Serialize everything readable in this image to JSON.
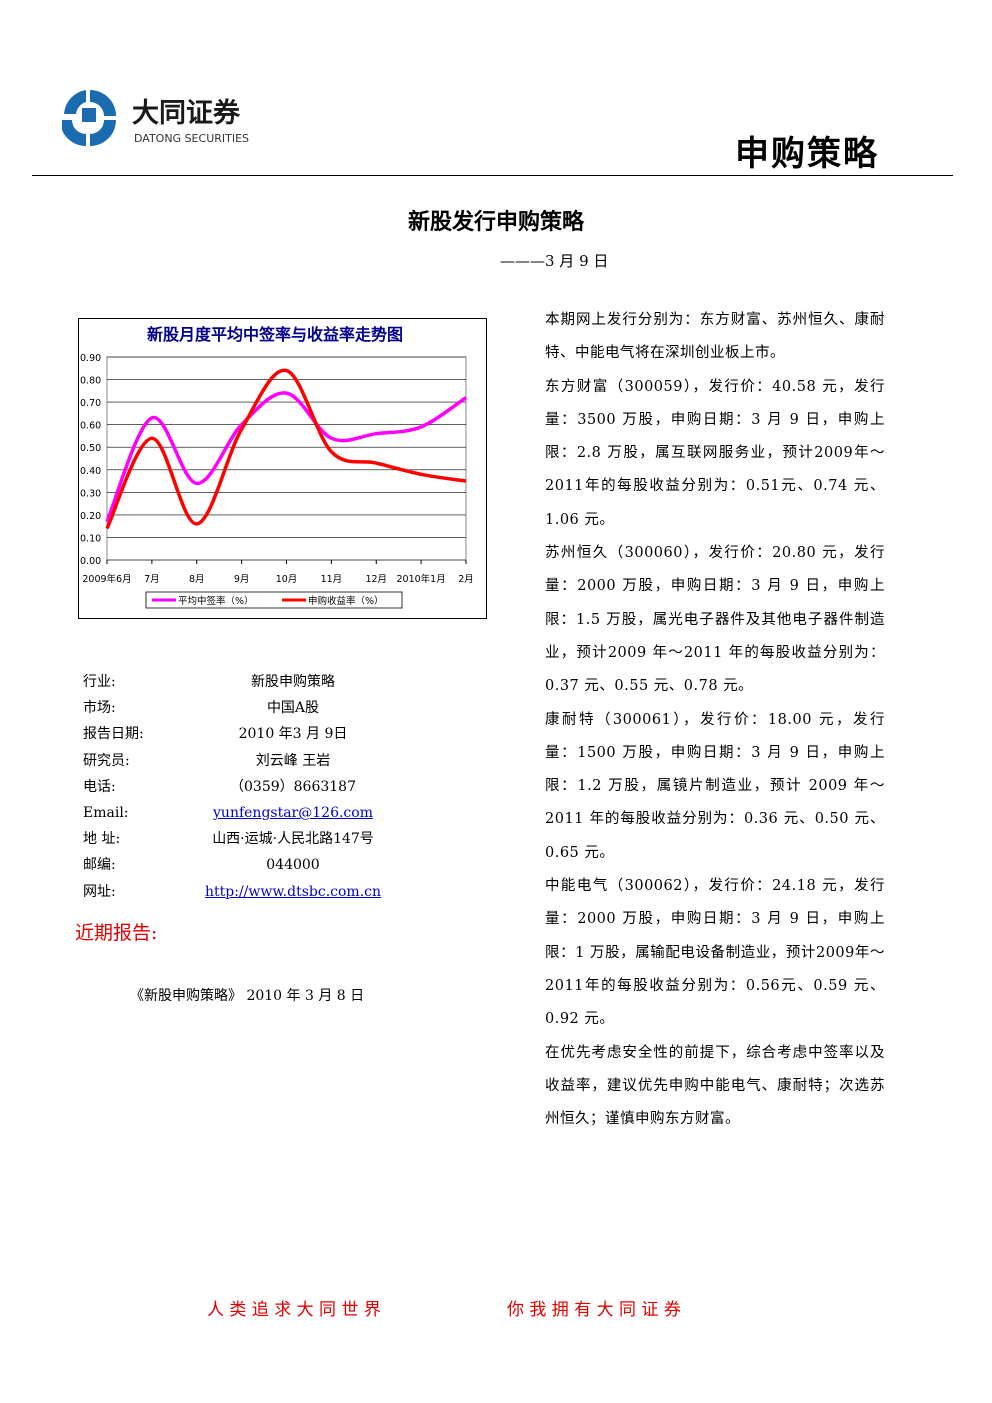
{
  "header": {
    "brand": "大同证券",
    "brand_en": "DATONG SECURITIES",
    "section": "申购策略"
  },
  "title": "新股发行申购策略",
  "date": "———3 月 9 日",
  "chart_data": {
    "type": "line",
    "title": "新股月度平均中签率与收益率走势图",
    "categories": [
      "2009年6月",
      "7月",
      "8月",
      "9月",
      "10月",
      "11月",
      "12月",
      "2010年1月",
      "2月"
    ],
    "series": [
      {
        "name": "平均中签率（%）",
        "color": "#ff00ff",
        "values": [
          0.17,
          0.63,
          0.34,
          0.6,
          0.74,
          0.54,
          0.56,
          0.59,
          0.72
        ]
      },
      {
        "name": "申购收益率（%）",
        "color": "#ff0000",
        "values": [
          0.14,
          0.54,
          0.16,
          0.58,
          0.84,
          0.48,
          0.43,
          0.38,
          0.35
        ]
      }
    ],
    "ylim": [
      0,
      0.9
    ],
    "yticks": [
      {
        "value": 0,
        "label": "0.00"
      },
      {
        "value": 0.1,
        "label": "0.10"
      },
      {
        "value": 0.2,
        "label": "0.20"
      },
      {
        "value": 0.3,
        "label": "0.30"
      },
      {
        "value": 0.4,
        "label": "0.40"
      },
      {
        "value": 0.5,
        "label": "0.50"
      },
      {
        "value": 0.6,
        "label": "0.60"
      },
      {
        "value": 0.7,
        "label": "0.70"
      },
      {
        "value": 0.8,
        "label": "0.80"
      },
      {
        "value": 0.9,
        "label": "0.90"
      }
    ],
    "grid": true,
    "legend": "bottom"
  },
  "info": {
    "rows": [
      [
        "行业:",
        "新股申购策略"
      ],
      [
        "市场:",
        "中国A股"
      ],
      [
        "报告日期:",
        "2010  年3  月  9日"
      ],
      [
        "研究员:",
        "刘云峰      王岩"
      ],
      [
        "电话:",
        "（0359）8663187"
      ],
      [
        "Email:",
        "yunfengstar@126.com"
      ],
      [
        "地  址:",
        "山西·运城·人民北路147号"
      ],
      [
        "邮编:",
        "044000"
      ],
      [
        "网址:",
        "http://www.dtsbc.com.cn"
      ]
    ]
  },
  "recent": {
    "heading": "近期报告:",
    "items": [
      "《新股申购策略》 2010 年 3 月 8 日"
    ]
  },
  "body": {
    "paragraphs": [
      "本期网上发行分别为：东方财富、苏州恒久、康耐特、中能电气将在深圳创业板上市。",
      "东方财富（300059），发行价：40.58 元，发行量：3500 万股，申购日期：3 月 9 日，申购上限：2.8 万股，属互联网服务业，预计2009年～2011年的每股收益分别为：0.51元、0.74 元、1.06 元。",
      "苏州恒久（300060），发行价：20.80 元，发行量：2000 万股，申购日期：3 月 9 日，申购上限：1.5 万股，属光电子器件及其他电子器件制造业，预计2009 年～2011 年的每股收益分别为：0.37 元、0.55 元、0.78 元。",
      "康耐特（300061），发行价：18.00 元，发行量：1500 万股，申购日期：3 月 9 日，申购上限：1.2 万股，属镜片制造业，预计 2009 年～2011 年的每股收益分别为：0.36 元、0.50 元、0.65 元。",
      "中能电气（300062），发行价：24.18 元，发行量：2000 万股，申购日期：3 月 9 日，申购上限：1 万股，属输配电设备制造业，预计2009年～2011年的每股收益分别为：0.56元、0.59 元、0.92 元。",
      "在优先考虑安全性的前提下，综合考虑中签率以及收益率，建议优先申购中能电气、康耐特；次选苏州恒久；谨慎申购东方财富。"
    ]
  },
  "footer": {
    "left": "人 类 追 求 大 同 世 界",
    "right": "你 我 拥 有 大 同 证 券"
  }
}
